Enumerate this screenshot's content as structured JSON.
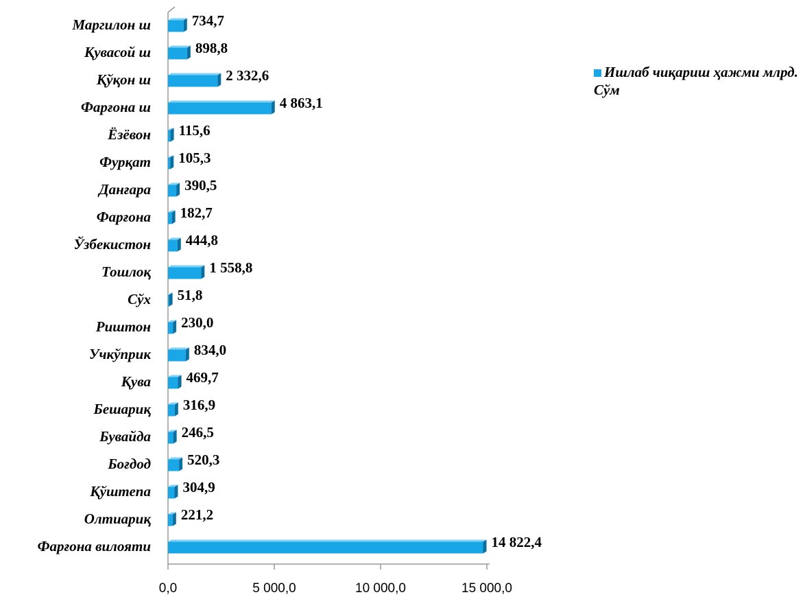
{
  "chart_data": {
    "type": "bar",
    "orientation": "horizontal",
    "categories": [
      "Маргилон ш",
      "Қувасой ш",
      "Қўқон ш",
      "Фарғона ш",
      "Ёзёвон",
      "Фурқат",
      "Данғара",
      "Фарғона",
      "Ўзбекистон",
      "Тошлоқ",
      "Сўх",
      "Риштон",
      "Учкўприк",
      "Қува",
      "Бешариқ",
      "Бувайда",
      "Боғдод",
      "Қўштепа",
      "Олтиариқ",
      "Фарғона вилояти"
    ],
    "series": [
      {
        "name": "Ишлаб чиқариш ҳажми млрд. Сўм",
        "color": "#1aa7e8",
        "values": [
          734.7,
          898.8,
          2332.6,
          4863.1,
          115.6,
          105.3,
          390.5,
          182.7,
          444.8,
          1558.8,
          51.8,
          230.0,
          834.0,
          469.7,
          316.9,
          246.5,
          520.3,
          304.9,
          221.2,
          14822.4
        ],
        "value_labels": [
          "734,7",
          "898,8",
          "2 332,6",
          "4 863,1",
          "115,6",
          "105,3",
          "390,5",
          "182,7",
          "444,8",
          "1 558,8",
          "51,8",
          "230,0",
          "834,0",
          "469,7",
          "316,9",
          "246,5",
          "520,3",
          "304,9",
          "221,2",
          "14 822,4"
        ]
      }
    ],
    "xlim": [
      0,
      15000
    ],
    "xticks": [
      {
        "value": 0,
        "label": "0,0"
      },
      {
        "value": 5000,
        "label": "5 000,0"
      },
      {
        "value": 10000,
        "label": "10 000,0"
      },
      {
        "value": 15000,
        "label": "15 000,0"
      }
    ],
    "legend": "right"
  }
}
